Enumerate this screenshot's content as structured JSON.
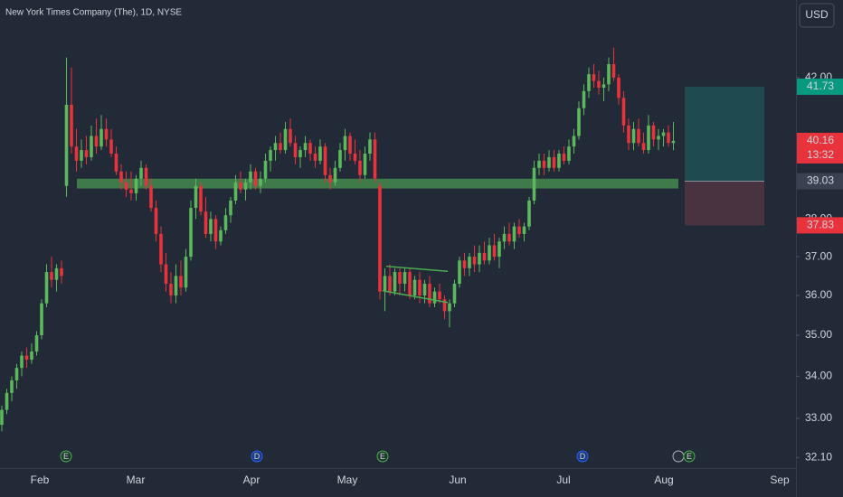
{
  "chart_data": {
    "type": "candlestick",
    "title": "New York Times Company (The), 1D, NYSE",
    "currency": "USD",
    "log_scale": true,
    "grid": false,
    "up_color": "#5cb85c",
    "down_color": "#e8333c",
    "ylim": [
      31.86,
      44.37
    ],
    "yticks": [
      {
        "value": 32.1,
        "label": "32.10"
      },
      {
        "value": 33,
        "label": "33.00"
      },
      {
        "value": 34,
        "label": "34.00"
      },
      {
        "value": 35,
        "label": "35.00"
      },
      {
        "value": 36,
        "label": "36.00"
      },
      {
        "value": 37,
        "label": "37.00"
      },
      {
        "value": 38,
        "label": "38.00"
      },
      {
        "value": 42,
        "label": "42.00"
      }
    ],
    "x_labels": [
      "Feb",
      "Mar",
      "Apr",
      "May",
      "Jun",
      "Jul",
      "Aug",
      "Sep"
    ],
    "candles": [
      [
        32.85,
        33.3,
        32.7,
        33.2
      ],
      [
        33.2,
        33.7,
        33.1,
        33.6
      ],
      [
        33.6,
        34.0,
        33.4,
        33.9
      ],
      [
        33.9,
        34.3,
        33.7,
        34.2
      ],
      [
        34.2,
        34.6,
        34.0,
        34.5
      ],
      [
        34.5,
        34.7,
        34.2,
        34.4
      ],
      [
        34.4,
        34.8,
        34.3,
        34.6
      ],
      [
        34.6,
        35.1,
        34.5,
        35.0
      ],
      [
        35.0,
        35.9,
        34.9,
        35.8
      ],
      [
        35.8,
        36.8,
        35.7,
        36.6
      ],
      [
        36.6,
        37.0,
        36.2,
        36.4
      ],
      [
        36.4,
        36.8,
        36.1,
        36.7
      ],
      [
        36.7,
        36.9,
        36.3,
        36.5
      ],
      [
        38.9,
        42.6,
        38.6,
        41.2
      ],
      [
        41.2,
        42.3,
        39.8,
        40.0
      ],
      [
        40.0,
        40.5,
        39.3,
        39.6
      ],
      [
        39.6,
        40.2,
        39.4,
        39.9
      ],
      [
        39.9,
        40.3,
        39.5,
        39.7
      ],
      [
        39.7,
        40.6,
        39.6,
        40.3
      ],
      [
        40.3,
        40.8,
        39.8,
        40.0
      ],
      [
        40.0,
        40.9,
        39.9,
        40.5
      ],
      [
        40.5,
        40.8,
        40.0,
        40.2
      ],
      [
        40.2,
        40.5,
        39.7,
        39.8
      ],
      [
        39.8,
        40.0,
        39.2,
        39.3
      ],
      [
        39.3,
        39.5,
        38.8,
        39.0
      ],
      [
        39.0,
        39.3,
        38.6,
        38.8
      ],
      [
        38.8,
        39.3,
        38.5,
        38.7
      ],
      [
        38.7,
        39.2,
        38.5,
        39.1
      ],
      [
        39.1,
        39.6,
        38.9,
        39.4
      ],
      [
        39.4,
        39.5,
        38.8,
        38.9
      ],
      [
        38.9,
        39.1,
        38.2,
        38.3
      ],
      [
        38.3,
        38.5,
        37.4,
        37.6
      ],
      [
        37.6,
        37.8,
        36.6,
        36.8
      ],
      [
        36.8,
        37.1,
        36.1,
        36.3
      ],
      [
        36.3,
        36.6,
        35.8,
        36.0
      ],
      [
        36.0,
        36.8,
        35.8,
        36.5
      ],
      [
        36.5,
        36.9,
        36.0,
        36.2
      ],
      [
        36.2,
        37.2,
        36.1,
        37.0
      ],
      [
        37.0,
        38.5,
        36.9,
        38.3
      ],
      [
        38.3,
        39.1,
        38.0,
        38.9
      ],
      [
        38.9,
        39.0,
        38.1,
        38.2
      ],
      [
        38.2,
        38.6,
        37.5,
        37.6
      ],
      [
        37.6,
        38.2,
        37.4,
        38.0
      ],
      [
        38.0,
        38.1,
        37.2,
        37.4
      ],
      [
        37.4,
        37.8,
        37.3,
        37.7
      ],
      [
        37.7,
        38.3,
        37.6,
        38.1
      ],
      [
        38.1,
        38.6,
        37.9,
        38.5
      ],
      [
        38.5,
        39.2,
        38.4,
        39.0
      ],
      [
        39.0,
        39.3,
        38.7,
        38.8
      ],
      [
        38.8,
        39.1,
        38.5,
        39.0
      ],
      [
        39.0,
        39.5,
        38.8,
        39.3
      ],
      [
        39.3,
        39.4,
        38.8,
        38.9
      ],
      [
        38.9,
        39.3,
        38.7,
        39.1
      ],
      [
        39.1,
        39.8,
        39.0,
        39.6
      ],
      [
        39.6,
        40.0,
        39.3,
        39.9
      ],
      [
        39.9,
        40.3,
        39.6,
        40.1
      ],
      [
        40.1,
        40.4,
        39.8,
        39.9
      ],
      [
        39.9,
        40.7,
        39.8,
        40.5
      ],
      [
        40.5,
        40.8,
        40.0,
        40.1
      ],
      [
        40.1,
        40.3,
        39.5,
        39.7
      ],
      [
        39.7,
        40.0,
        39.4,
        39.9
      ],
      [
        39.9,
        40.3,
        39.7,
        40.1
      ],
      [
        40.1,
        40.2,
        39.6,
        39.8
      ],
      [
        39.8,
        40.0,
        39.4,
        39.6
      ],
      [
        39.6,
        40.2,
        39.5,
        40.0
      ],
      [
        40.0,
        40.1,
        39.0,
        39.2
      ],
      [
        39.2,
        39.4,
        38.8,
        39.0
      ],
      [
        39.0,
        39.6,
        38.9,
        39.4
      ],
      [
        39.4,
        40.1,
        39.3,
        39.9
      ],
      [
        39.9,
        40.5,
        39.6,
        40.3
      ],
      [
        40.3,
        40.4,
        39.6,
        39.8
      ],
      [
        39.8,
        40.2,
        39.5,
        39.6
      ],
      [
        39.6,
        39.9,
        39.0,
        39.2
      ],
      [
        39.2,
        40.0,
        39.1,
        39.8
      ],
      [
        39.8,
        40.4,
        39.6,
        40.2
      ],
      [
        40.2,
        40.4,
        39.0,
        39.1
      ],
      [
        38.9,
        39.0,
        35.9,
        36.1
      ],
      [
        36.1,
        36.7,
        35.6,
        36.5
      ],
      [
        36.5,
        36.8,
        36.0,
        36.1
      ],
      [
        36.1,
        36.7,
        36.0,
        36.6
      ],
      [
        36.6,
        36.7,
        36.0,
        36.3
      ],
      [
        36.3,
        36.7,
        36.1,
        36.6
      ],
      [
        36.6,
        36.7,
        35.9,
        36.0
      ],
      [
        36.0,
        36.5,
        35.9,
        36.4
      ],
      [
        36.4,
        36.6,
        35.8,
        36.0
      ],
      [
        36.0,
        36.4,
        35.8,
        36.3
      ],
      [
        36.3,
        36.5,
        35.7,
        35.8
      ],
      [
        35.8,
        36.2,
        35.7,
        36.1
      ],
      [
        36.1,
        36.3,
        35.8,
        35.9
      ],
      [
        35.9,
        36.0,
        35.4,
        35.6
      ],
      [
        35.6,
        35.9,
        35.2,
        35.8
      ],
      [
        35.8,
        36.4,
        35.7,
        36.3
      ],
      [
        36.3,
        37.0,
        36.2,
        36.9
      ],
      [
        36.9,
        37.1,
        36.5,
        36.7
      ],
      [
        36.7,
        37.1,
        36.5,
        37.0
      ],
      [
        37.0,
        37.3,
        36.6,
        36.8
      ],
      [
        36.8,
        37.3,
        36.6,
        37.1
      ],
      [
        37.1,
        37.4,
        36.8,
        36.9
      ],
      [
        36.9,
        37.5,
        36.8,
        37.3
      ],
      [
        37.3,
        37.6,
        36.9,
        37.0
      ],
      [
        37.0,
        37.5,
        36.7,
        37.4
      ],
      [
        37.4,
        37.8,
        37.2,
        37.6
      ],
      [
        37.6,
        37.9,
        37.3,
        37.4
      ],
      [
        37.4,
        37.9,
        37.2,
        37.8
      ],
      [
        37.8,
        38.0,
        37.5,
        37.6
      ],
      [
        37.6,
        37.9,
        37.4,
        37.8
      ],
      [
        37.8,
        38.6,
        37.7,
        38.5
      ],
      [
        38.5,
        39.6,
        38.4,
        39.4
      ],
      [
        39.4,
        39.8,
        39.2,
        39.6
      ],
      [
        39.6,
        39.8,
        39.2,
        39.4
      ],
      [
        39.4,
        39.9,
        39.3,
        39.7
      ],
      [
        39.7,
        39.9,
        39.3,
        39.4
      ],
      [
        39.4,
        39.9,
        39.3,
        39.8
      ],
      [
        39.8,
        40.0,
        39.5,
        39.6
      ],
      [
        39.6,
        40.2,
        39.5,
        40.0
      ],
      [
        40.0,
        40.5,
        39.8,
        40.3
      ],
      [
        40.3,
        41.3,
        40.2,
        41.1
      ],
      [
        41.1,
        41.8,
        40.9,
        41.6
      ],
      [
        41.6,
        42.3,
        41.4,
        42.1
      ],
      [
        42.1,
        42.4,
        41.7,
        41.9
      ],
      [
        41.9,
        42.2,
        41.5,
        41.7
      ],
      [
        41.7,
        42.0,
        41.3,
        41.8
      ],
      [
        41.8,
        42.6,
        41.6,
        42.4
      ],
      [
        42.4,
        42.9,
        41.9,
        42.0
      ],
      [
        42.0,
        42.1,
        41.2,
        41.4
      ],
      [
        41.4,
        41.6,
        40.4,
        40.6
      ],
      [
        40.6,
        40.8,
        39.9,
        40.1
      ],
      [
        40.1,
        40.7,
        39.9,
        40.5
      ],
      [
        40.5,
        40.8,
        40.0,
        40.1
      ],
      [
        40.1,
        40.4,
        39.8,
        39.9
      ],
      [
        39.9,
        40.9,
        39.8,
        40.6
      ],
      [
        40.6,
        40.7,
        40.0,
        40.2
      ],
      [
        40.2,
        40.5,
        39.9,
        40.3
      ],
      [
        40.3,
        40.5,
        40.0,
        40.4
      ],
      [
        40.4,
        40.6,
        40.0,
        40.1
      ],
      [
        40.1,
        40.7,
        39.9,
        40.16
      ]
    ],
    "zone": {
      "low": 38.83,
      "high": 39.1,
      "color": "#3f7a4a"
    },
    "channel": {
      "upper": [
        36.75,
        36.62
      ],
      "lower": [
        36.12,
        35.82
      ],
      "color": "#4caf50"
    },
    "position": {
      "target": 41.73,
      "entry": 39.03,
      "stop": 37.83,
      "profit_color": "#1f4a4f",
      "loss_color": "#4a3340"
    },
    "price_labels": [
      {
        "value": 41.73,
        "color": "#089981"
      },
      {
        "value": 40.16,
        "color": "#e8333c",
        "countdown": "13:32"
      },
      {
        "value": 39.03,
        "color": "#3a4252"
      },
      {
        "value": 37.83,
        "color": "#e8333c"
      }
    ],
    "events": [
      "E",
      "D",
      "E",
      "D",
      "E"
    ]
  }
}
